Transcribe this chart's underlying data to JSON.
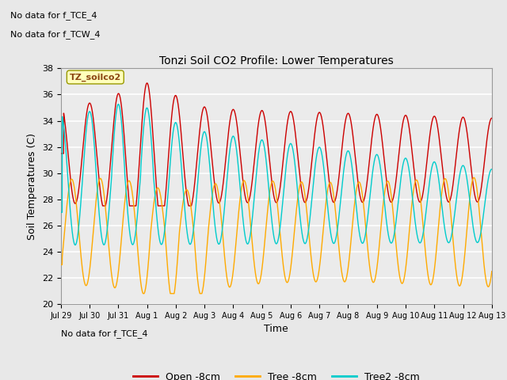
{
  "title": "Tonzi Soil CO2 Profile: Lower Temperatures",
  "xlabel": "Time",
  "ylabel": "Soil Temperatures (C)",
  "ylim": [
    20,
    38
  ],
  "note1": "No data for f_TCE_4",
  "note2": "No data for f_TCW_4",
  "label_box": "TZ_soilco2",
  "colors": {
    "open": "#cc0000",
    "tree": "#ffaa00",
    "tree2": "#00cccc"
  },
  "legend_labels": [
    "Open -8cm",
    "Tree -8cm",
    "Tree2 -8cm"
  ],
  "x_tick_labels": [
    "Jul 29",
    "Jul 30",
    "Jul 31",
    "Aug 1",
    "Aug 2",
    "Aug 3",
    "Aug 4",
    "Aug 5",
    "Aug 6",
    "Aug 7",
    "Aug 8",
    "Aug 9",
    "Aug 10",
    "Aug 11",
    "Aug 12",
    "Aug 13"
  ],
  "background_color": "#e8e8e8",
  "plot_bg_color": "#ebebeb",
  "grid_color": "#ffffff"
}
